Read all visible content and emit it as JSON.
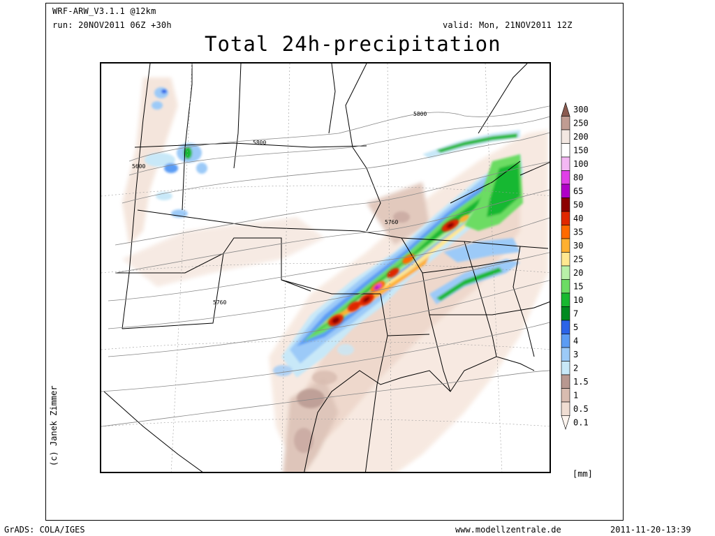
{
  "header": {
    "model": "WRF-ARW_V3.1.1 @12km",
    "run": "run: 20NOV2011 06Z +30h",
    "valid": "valid: Mon, 21NOV2011 12Z",
    "title": "Total 24h-precipitation"
  },
  "credit": "(c) Janek Zimmer",
  "legend": {
    "unit": "[mm]",
    "levels": [
      {
        "label": "300",
        "color": "#8a5a4f"
      },
      {
        "label": "250",
        "color": "#c09c92"
      },
      {
        "label": "200",
        "color": "#f3e8e2"
      },
      {
        "label": "150",
        "color": "#ffffff"
      },
      {
        "label": "100",
        "color": "#f4b8f4"
      },
      {
        "label": "80",
        "color": "#e040e8"
      },
      {
        "label": "65",
        "color": "#b000c8"
      },
      {
        "label": "50",
        "color": "#8c0000"
      },
      {
        "label": "40",
        "color": "#e02800"
      },
      {
        "label": "35",
        "color": "#ff6a00"
      },
      {
        "label": "30",
        "color": "#ffb030"
      },
      {
        "label": "25",
        "color": "#ffe890"
      },
      {
        "label": "20",
        "color": "#b8f0a8"
      },
      {
        "label": "15",
        "color": "#6cdc64"
      },
      {
        "label": "10",
        "color": "#18b830"
      },
      {
        "label": "7",
        "color": "#008a20"
      },
      {
        "label": "5",
        "color": "#2c64e8"
      },
      {
        "label": "4",
        "color": "#5c9cf4"
      },
      {
        "label": "3",
        "color": "#9ccaf8"
      },
      {
        "label": "2",
        "color": "#c8e8f8"
      },
      {
        "label": "1.5",
        "color": "#b89890"
      },
      {
        "label": "1",
        "color": "#d8bcb0"
      },
      {
        "label": "0.5",
        "color": "#f0ddd2"
      },
      {
        "label": "0.1",
        "color": "#fdf4ee"
      }
    ]
  },
  "contours": {
    "labels": [
      "5800",
      "5800",
      "5600",
      "5760",
      "5760"
    ]
  },
  "footer": {
    "left": "GrADS: COLA/IGES",
    "center": "www.modellzentrale.de",
    "right": "2011-11-20-13:39"
  }
}
